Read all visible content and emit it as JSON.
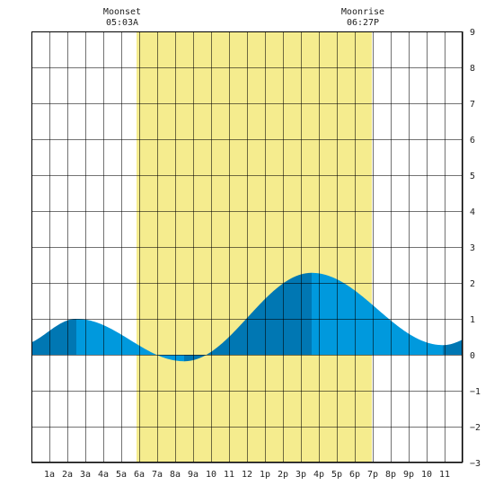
{
  "chart_data": {
    "type": "area",
    "title": "",
    "xlabel": "",
    "ylabel": "",
    "x_unit": "hours",
    "xlim": [
      0,
      24
    ],
    "ylim": [
      -3,
      9
    ],
    "grid": true,
    "x_ticks": [
      {
        "x": 1,
        "label": "1a"
      },
      {
        "x": 2,
        "label": "2a"
      },
      {
        "x": 3,
        "label": "3a"
      },
      {
        "x": 4,
        "label": "4a"
      },
      {
        "x": 5,
        "label": "5a"
      },
      {
        "x": 6,
        "label": "6a"
      },
      {
        "x": 7,
        "label": "7a"
      },
      {
        "x": 8,
        "label": "8a"
      },
      {
        "x": 9,
        "label": "9a"
      },
      {
        "x": 10,
        "label": "10"
      },
      {
        "x": 11,
        "label": "11"
      },
      {
        "x": 12,
        "label": "12"
      },
      {
        "x": 13,
        "label": "1p"
      },
      {
        "x": 14,
        "label": "2p"
      },
      {
        "x": 15,
        "label": "3p"
      },
      {
        "x": 16,
        "label": "4p"
      },
      {
        "x": 17,
        "label": "5p"
      },
      {
        "x": 18,
        "label": "6p"
      },
      {
        "x": 19,
        "label": "7p"
      },
      {
        "x": 20,
        "label": "8p"
      },
      {
        "x": 21,
        "label": "9p"
      },
      {
        "x": 22,
        "label": "10"
      },
      {
        "x": 23,
        "label": "11"
      }
    ],
    "y_ticks": [
      -3,
      -2,
      -1,
      0,
      1,
      2,
      3,
      4,
      5,
      6,
      7,
      8,
      9
    ],
    "daylight": {
      "start": 5.85,
      "end": 18.95,
      "color": "#f5ec8e"
    },
    "tide_extremes": [
      {
        "x": -0.7,
        "y": 0.26
      },
      {
        "x": 2.5,
        "y": 1.0
      },
      {
        "x": 8.5,
        "y": -0.18
      },
      {
        "x": 15.6,
        "y": 2.28
      },
      {
        "x": 22.9,
        "y": 0.27
      },
      {
        "x": 26.5,
        "y": 1.0
      }
    ],
    "tide_color": "#0099dd",
    "tide_dark_color": "#0077b3",
    "annotations": [
      {
        "label": "Moonset",
        "time": "05:03A",
        "x": 5.05
      },
      {
        "label": "Moonrise",
        "time": "06:27P",
        "x": 18.45
      }
    ]
  }
}
